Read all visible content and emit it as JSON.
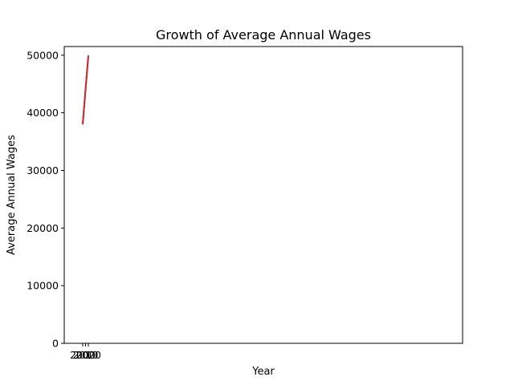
{
  "chart_data": {
    "type": "line",
    "title": "Growth of Average Annual Wages",
    "xlabel": "Year",
    "ylabel": "Average Annual Wages",
    "ylim": [
      0,
      51500
    ],
    "yticks": [
      0,
      10000,
      20000,
      30000,
      40000,
      50000
    ],
    "xtick_labels": [
      "2000",
      "2010",
      "2020"
    ],
    "grid": false,
    "legend": "none",
    "series": [
      {
        "color": "#1f77b4",
        "x": [
          2000,
          2010,
          2020
        ],
        "y": [
          38000,
          44000,
          50000
        ]
      },
      {
        "color": "#d62728",
        "x": [
          2000,
          2010,
          2020
        ],
        "y": [
          38000,
          44000,
          49800
        ]
      }
    ],
    "baseline_line": {
      "color": "#000000",
      "y": 0
    }
  }
}
